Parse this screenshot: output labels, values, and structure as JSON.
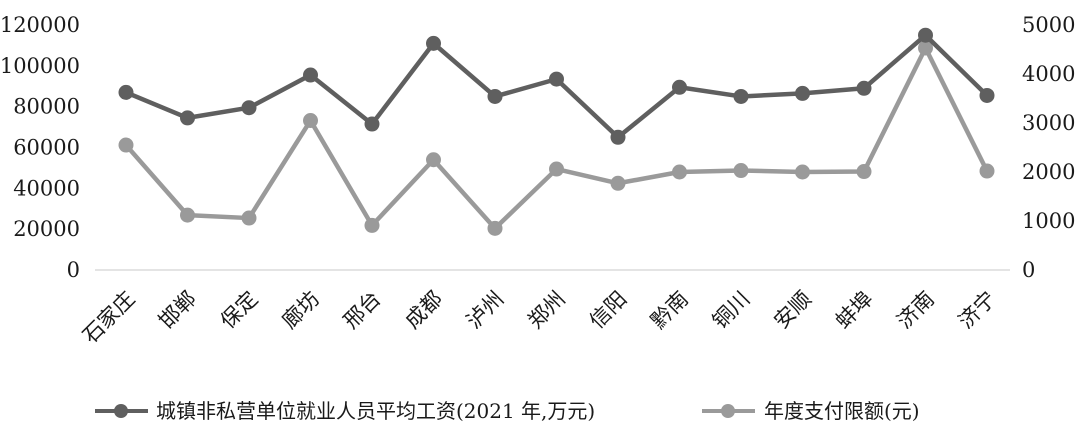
{
  "chart_data": {
    "type": "line",
    "categories": [
      "石家庄",
      "邯郸",
      "保定",
      "廊坊",
      "邢台",
      "成都",
      "泸州",
      "郑州",
      "信阳",
      "黔南",
      "铜川",
      "安顺",
      "蚌埠",
      "济南",
      "济宁"
    ],
    "series": [
      {
        "name": "城镇非私营单位就业人员平均工资(2021 年,万元)",
        "axis": "left",
        "color": "#5f5f5f",
        "values": [
          87000,
          74500,
          79500,
          95500,
          71500,
          111000,
          85000,
          93500,
          65000,
          89500,
          85000,
          86500,
          89000,
          115000,
          85500
        ]
      },
      {
        "name": "年度支付限额(元)",
        "axis": "right",
        "color": "#9a9a9a",
        "values": [
          2550,
          1120,
          1060,
          3050,
          910,
          2250,
          850,
          2060,
          1770,
          2000,
          2030,
          2000,
          2010,
          4530,
          2020
        ]
      }
    ],
    "y_left": {
      "ylim": [
        0,
        120000
      ],
      "ticks": [
        "0",
        "20000",
        "40000",
        "60000",
        "80000",
        "100000",
        "120000"
      ]
    },
    "y_right": {
      "ylim": [
        0,
        5000
      ],
      "ticks": [
        "0",
        "1000",
        "2000",
        "3000",
        "4000",
        "5000"
      ]
    },
    "grid": false,
    "legend": "bottom"
  }
}
